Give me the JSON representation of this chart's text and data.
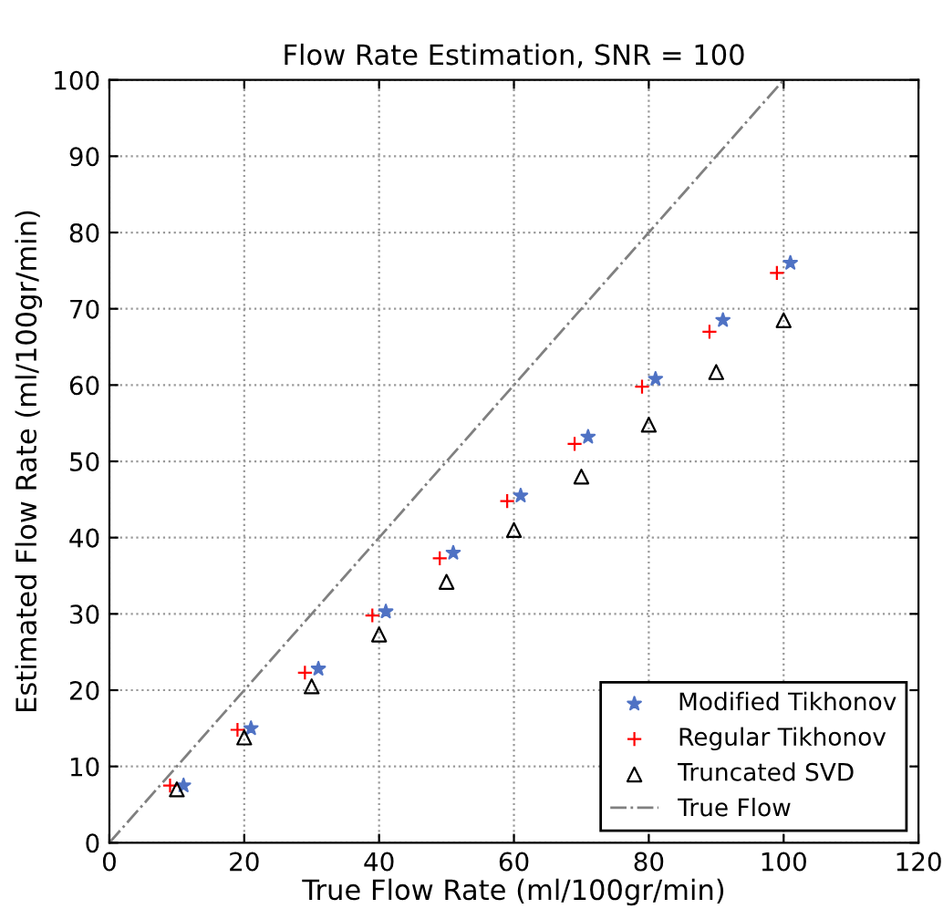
{
  "chart_data": {
    "type": "scatter",
    "title": "Flow Rate Estimation, SNR = 100",
    "xlabel": "True Flow Rate (ml/100gr/min)",
    "ylabel": "Estimated Flow Rate (ml/100gr/min)",
    "xlim": [
      0,
      120
    ],
    "ylim": [
      0,
      100
    ],
    "xticks": [
      0,
      20,
      40,
      60,
      80,
      100,
      120
    ],
    "yticks": [
      0,
      10,
      20,
      30,
      40,
      50,
      60,
      70,
      80,
      90,
      100
    ],
    "grid": true,
    "legend": "bottom right",
    "series": [
      {
        "name": "Modified Tikhonov",
        "color": "#4f72c4",
        "marker": "star",
        "x": [
          11,
          21,
          31,
          41,
          51,
          61,
          71,
          81,
          91,
          101
        ],
        "values": [
          7.5,
          15,
          22.8,
          30.3,
          38,
          45.5,
          53.2,
          60.8,
          68.5,
          76
        ]
      },
      {
        "name": "Regular Tikhonov",
        "color": "#ff0000",
        "marker": "cross",
        "x": [
          9,
          19,
          29,
          39,
          49,
          59,
          69,
          79,
          89,
          99
        ],
        "values": [
          7.5,
          14.8,
          22.3,
          29.8,
          37.3,
          44.8,
          52.3,
          59.8,
          67,
          74.7
        ]
      },
      {
        "name": "Truncated SVD",
        "color": "#000000",
        "marker": "triangle",
        "x": [
          10,
          20,
          30,
          40,
          50,
          60,
          70,
          80,
          90,
          100
        ],
        "values": [
          7,
          13.8,
          20.5,
          27.3,
          34.2,
          41,
          48,
          54.8,
          61.7,
          68.5
        ]
      },
      {
        "name": "True Flow",
        "type": "line",
        "color": "#808080",
        "marker": "none",
        "line_style": "dashdot",
        "x": [
          0,
          100
        ],
        "values": [
          0,
          100
        ]
      }
    ]
  }
}
